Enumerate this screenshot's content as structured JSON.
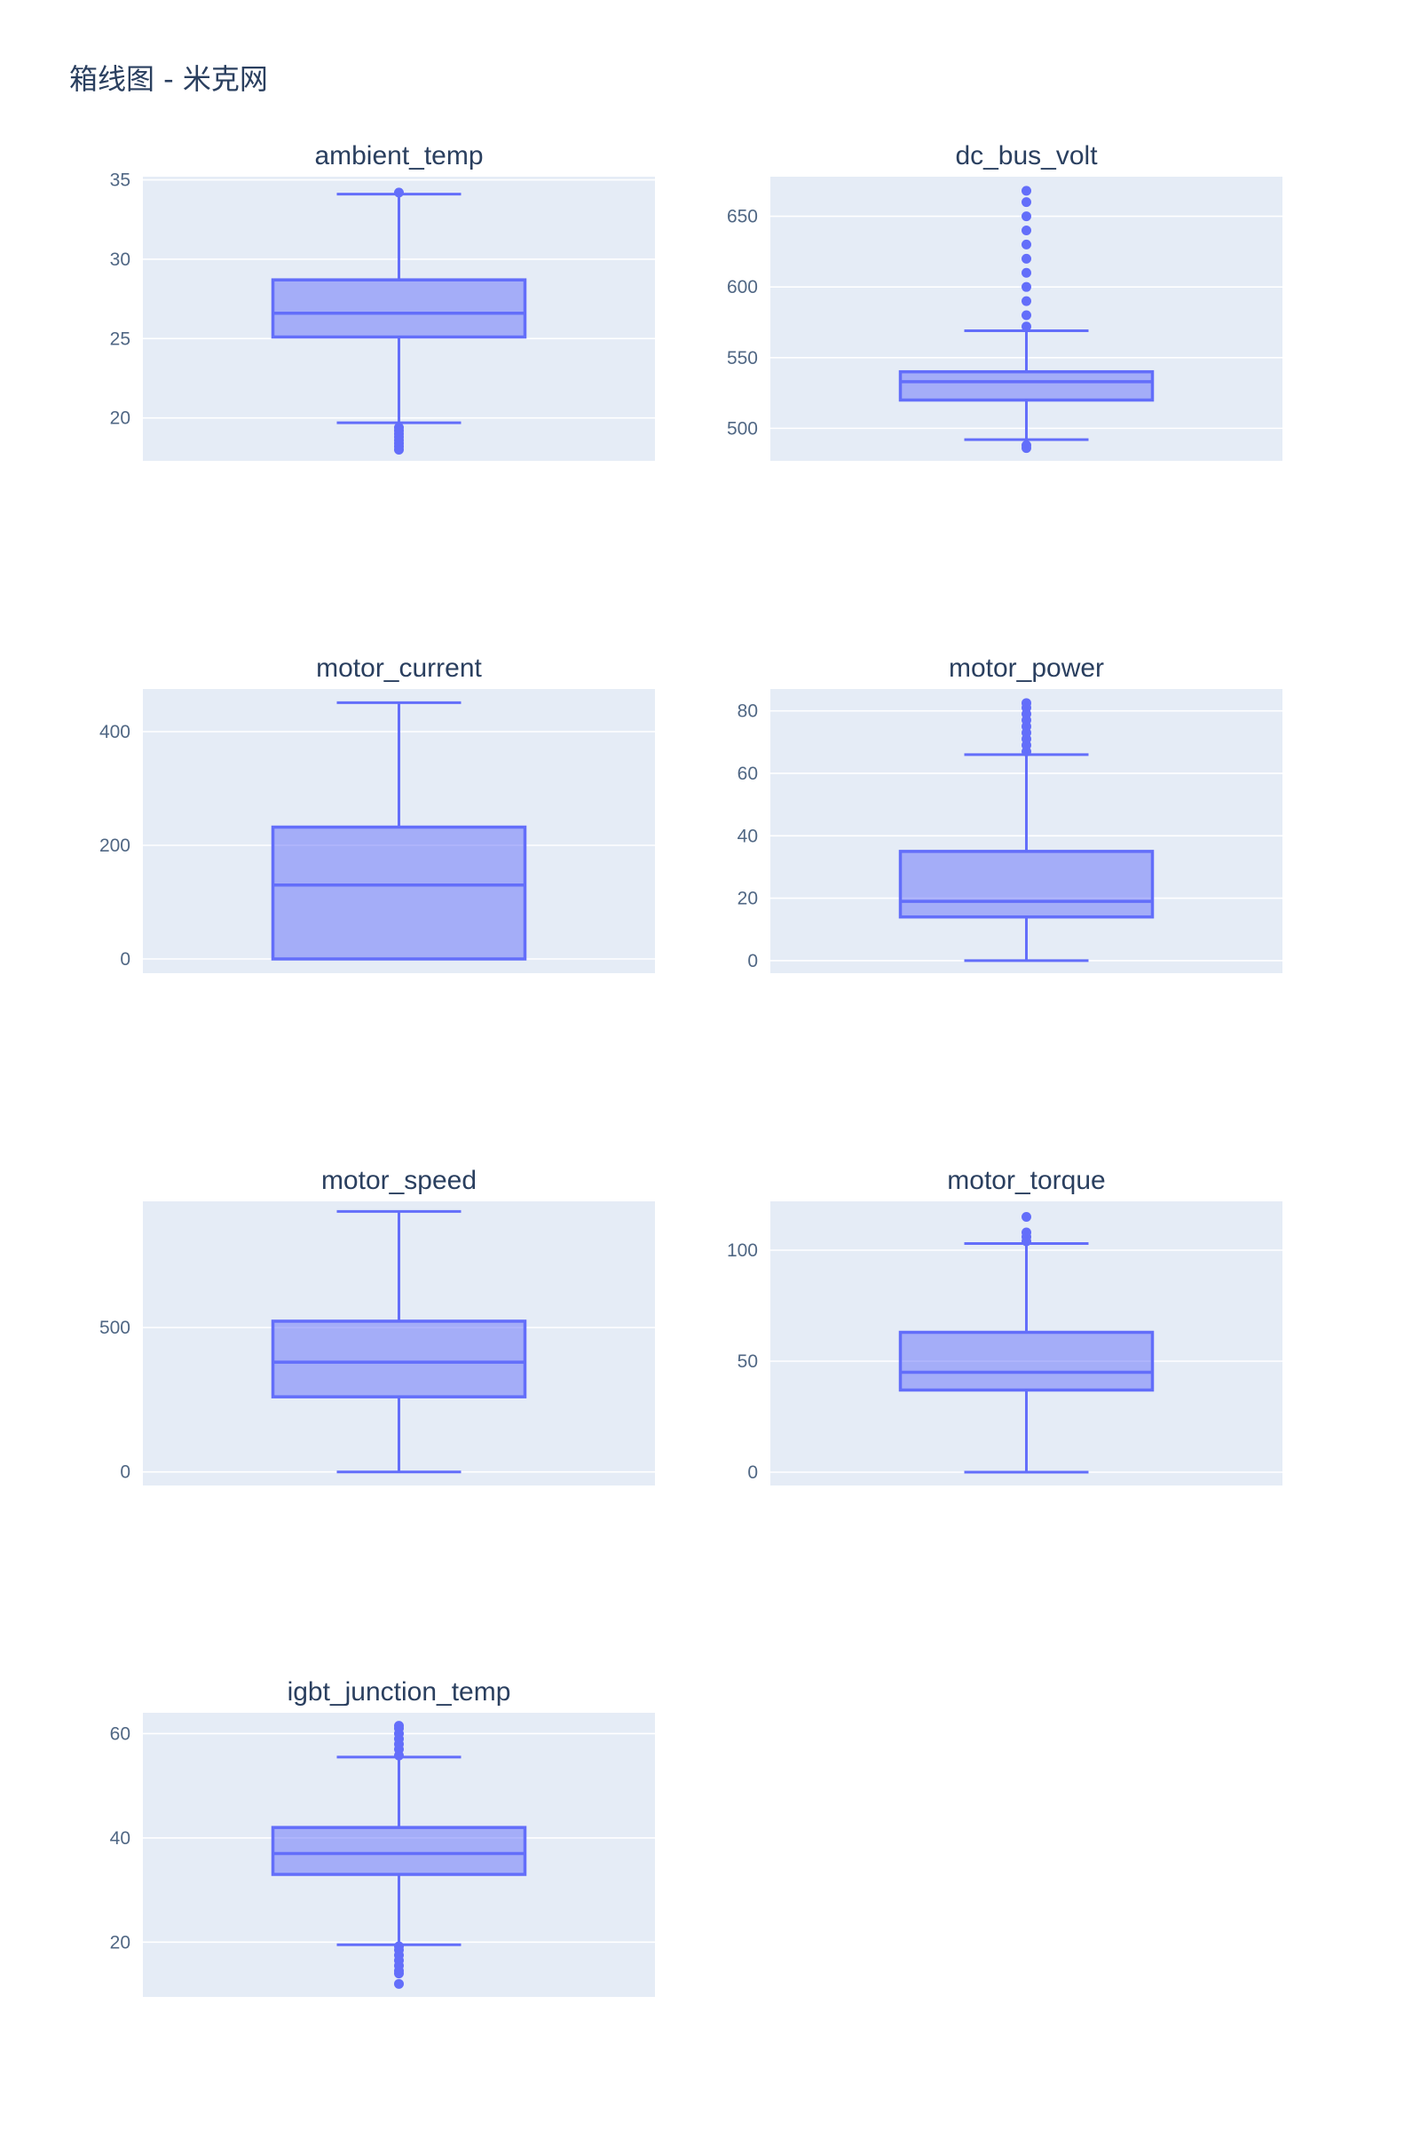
{
  "title": "箱线图 - 米克网",
  "colors": {
    "plot_bg": "#e5ecf6",
    "grid": "#ffffff",
    "box_line": "#636efa",
    "box_fill": "rgba(99,110,250,0.5)",
    "text": "#2a3f5f",
    "tick_text": "#506784"
  },
  "chart_data": [
    {
      "type": "box",
      "title": "ambient_temp",
      "ylim": [
        17.3,
        35.2
      ],
      "yticks": [
        20,
        25,
        30,
        35
      ],
      "grid": true,
      "whisker_low": 19.7,
      "q1": 25.1,
      "median": 26.6,
      "q3": 28.7,
      "whisker_high": 34.1,
      "outliers": [
        34.2,
        19.4,
        19.2,
        19.0,
        18.8,
        18.6,
        18.4,
        18.2,
        18.0
      ]
    },
    {
      "type": "box",
      "title": "dc_bus_volt",
      "ylim": [
        477,
        678
      ],
      "yticks": [
        500,
        550,
        600,
        650
      ],
      "grid": true,
      "whisker_low": 492,
      "q1": 520,
      "median": 533,
      "q3": 540,
      "whisker_high": 569,
      "outliers": [
        572,
        580,
        590,
        600,
        610,
        620,
        630,
        640,
        650,
        660,
        668,
        488,
        486
      ]
    },
    {
      "type": "box",
      "title": "motor_current",
      "ylim": [
        -25,
        475
      ],
      "yticks": [
        0,
        200,
        400
      ],
      "grid": true,
      "whisker_low": 0,
      "q1": 0,
      "median": 130,
      "q3": 232,
      "whisker_high": 451,
      "outliers": []
    },
    {
      "type": "box",
      "title": "motor_power",
      "ylim": [
        -4,
        87
      ],
      "yticks": [
        0,
        20,
        40,
        60,
        80
      ],
      "grid": true,
      "whisker_low": 0,
      "q1": 14,
      "median": 19,
      "q3": 35,
      "whisker_high": 66,
      "outliers": [
        67,
        69,
        71,
        73,
        75,
        77,
        79,
        81,
        82.5
      ]
    },
    {
      "type": "box",
      "title": "motor_speed",
      "ylim": [
        -47,
        937
      ],
      "yticks": [
        0,
        500
      ],
      "grid": true,
      "whisker_low": 0,
      "q1": 260,
      "median": 380,
      "q3": 522,
      "whisker_high": 902,
      "outliers": []
    },
    {
      "type": "box",
      "title": "motor_torque",
      "ylim": [
        -6,
        122
      ],
      "yticks": [
        0,
        50,
        100
      ],
      "grid": true,
      "whisker_low": 0,
      "q1": 37,
      "median": 45,
      "q3": 63,
      "whisker_high": 103,
      "outliers": [
        104,
        106,
        108,
        115
      ]
    },
    {
      "type": "box",
      "title": "igbt_junction_temp",
      "ylim": [
        9.5,
        64
      ],
      "yticks": [
        20,
        40,
        60
      ],
      "grid": true,
      "whisker_low": 19.5,
      "q1": 33,
      "median": 37,
      "q3": 42,
      "whisker_high": 55.5,
      "outliers": [
        55.8,
        57,
        58,
        59,
        60,
        61,
        61.5,
        19.2,
        18.5,
        17.5,
        16.5,
        15.5,
        14.5,
        14,
        12
      ]
    }
  ]
}
